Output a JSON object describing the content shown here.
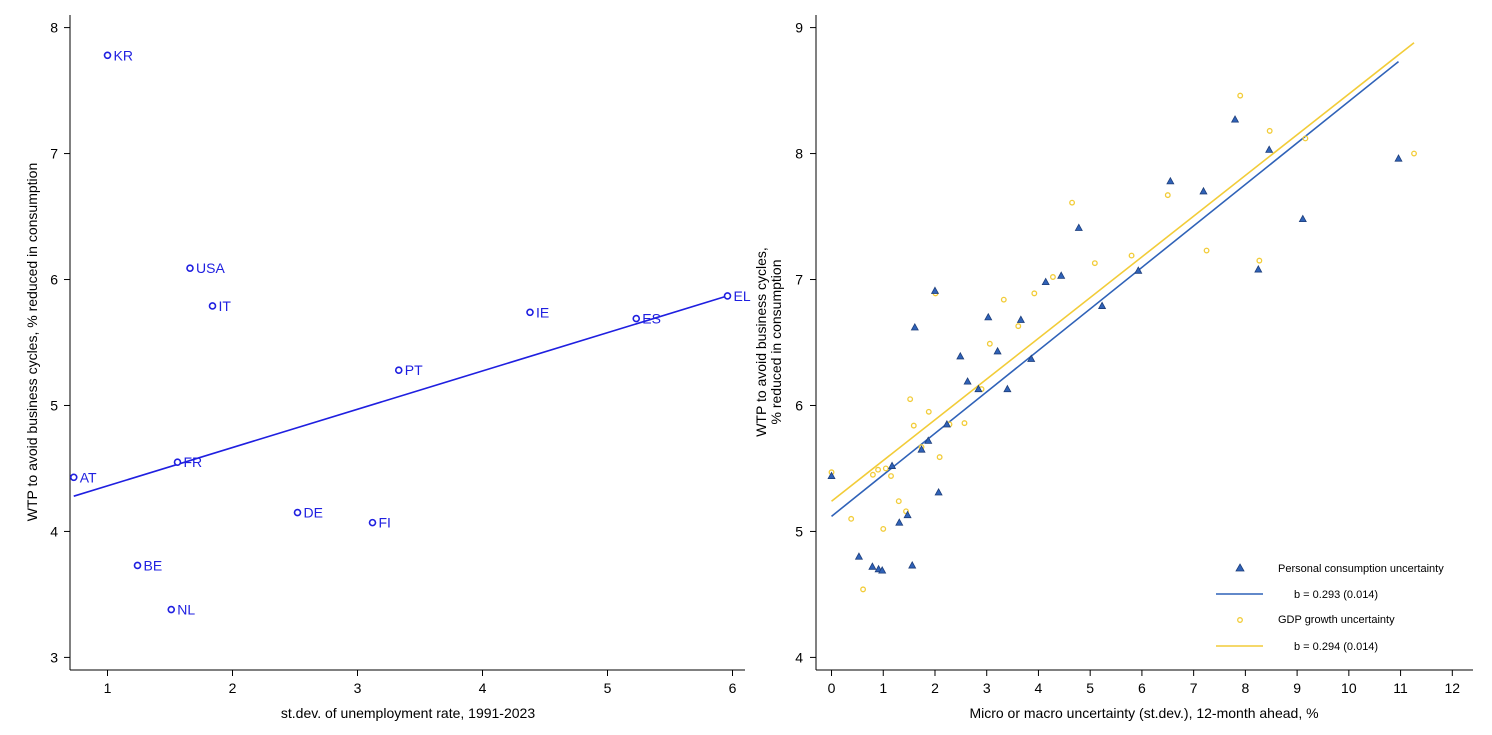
{
  "chart_data": [
    {
      "type": "scatter",
      "title": "",
      "xlabel": "st.dev. of unemployment rate, 1991-2023",
      "ylabel": "WTP to avoid business cycles, % reduced in consumption",
      "xlim": [
        0.7,
        6.1
      ],
      "ylim": [
        2.9,
        8.1
      ],
      "xticks": [
        1,
        2,
        3,
        4,
        5,
        6
      ],
      "yticks": [
        3,
        4,
        5,
        6,
        7,
        8
      ],
      "grid": false,
      "point_color": "#1f1fe0",
      "series": [
        {
          "points": [
            {
              "label": "KR",
              "x": 1.0,
              "y": 7.78
            },
            {
              "label": "USA",
              "x": 1.66,
              "y": 6.09
            },
            {
              "label": "IT",
              "x": 1.84,
              "y": 5.79
            },
            {
              "label": "IE",
              "x": 4.38,
              "y": 5.74
            },
            {
              "label": "ES",
              "x": 5.23,
              "y": 5.69
            },
            {
              "label": "EL",
              "x": 5.96,
              "y": 5.87
            },
            {
              "label": "PT",
              "x": 3.33,
              "y": 5.28
            },
            {
              "label": "FR",
              "x": 1.56,
              "y": 4.55
            },
            {
              "label": "AT",
              "x": 0.73,
              "y": 4.43
            },
            {
              "label": "DE",
              "x": 2.52,
              "y": 4.15
            },
            {
              "label": "FI",
              "x": 3.12,
              "y": 4.07
            },
            {
              "label": "BE",
              "x": 1.24,
              "y": 3.73
            },
            {
              "label": "NL",
              "x": 1.51,
              "y": 3.38
            }
          ]
        }
      ],
      "fit_line": {
        "x": [
          0.73,
          5.96
        ],
        "y": [
          4.28,
          5.87
        ]
      }
    },
    {
      "type": "scatter",
      "title": "",
      "xlabel": "Micro or macro uncertainty (st.dev.), 12-month ahead, %",
      "ylabel": [
        "WTP to avoid business cycles,",
        "% reduced in consumption"
      ],
      "xlim": [
        -0.3,
        12.4
      ],
      "ylim": [
        3.9,
        9.1
      ],
      "xticks": [
        0,
        1,
        2,
        3,
        4,
        5,
        6,
        7,
        8,
        9,
        10,
        11,
        12
      ],
      "yticks": [
        4,
        5,
        6,
        7,
        8,
        9
      ],
      "grid": false,
      "legend_position": "bottom-right",
      "series": [
        {
          "name": "Personal consumption uncertainty",
          "fit_label": "b = 0.293 (0.014)",
          "marker": "triangle",
          "color": "#2f62b8",
          "points": [
            [
              0.0,
              5.44
            ],
            [
              0.53,
              4.8
            ],
            [
              0.79,
              4.72
            ],
            [
              0.91,
              4.7
            ],
            [
              0.98,
              4.69
            ],
            [
              1.17,
              5.52
            ],
            [
              1.31,
              5.07
            ],
            [
              1.47,
              5.13
            ],
            [
              1.56,
              4.73
            ],
            [
              1.61,
              6.62
            ],
            [
              1.74,
              5.65
            ],
            [
              1.87,
              5.72
            ],
            [
              2.0,
              6.91
            ],
            [
              2.07,
              5.31
            ],
            [
              2.23,
              5.85
            ],
            [
              2.49,
              6.39
            ],
            [
              2.63,
              6.19
            ],
            [
              2.84,
              6.13
            ],
            [
              3.03,
              6.7
            ],
            [
              3.21,
              6.43
            ],
            [
              3.4,
              6.13
            ],
            [
              3.66,
              6.68
            ],
            [
              3.86,
              6.37
            ],
            [
              4.14,
              6.98
            ],
            [
              4.44,
              7.03
            ],
            [
              4.78,
              7.41
            ],
            [
              5.23,
              6.79
            ],
            [
              5.93,
              7.07
            ],
            [
              6.55,
              7.78
            ],
            [
              7.19,
              7.7
            ],
            [
              7.8,
              8.27
            ],
            [
              8.25,
              7.08
            ],
            [
              8.46,
              8.03
            ],
            [
              9.11,
              7.48
            ],
            [
              10.96,
              7.96
            ]
          ],
          "fit_line": {
            "x": [
              0.0,
              10.96
            ],
            "y": [
              5.12,
              8.73
            ]
          }
        },
        {
          "name": "GDP growth uncertainty",
          "fit_label": "b = 0.294 (0.014)",
          "marker": "circle",
          "color": "#f2cc38",
          "points": [
            [
              0.0,
              5.47
            ],
            [
              0.38,
              5.1
            ],
            [
              0.61,
              4.54
            ],
            [
              0.8,
              5.45
            ],
            [
              0.9,
              5.49
            ],
            [
              1.0,
              5.02
            ],
            [
              1.05,
              5.5
            ],
            [
              1.15,
              5.44
            ],
            [
              1.3,
              5.24
            ],
            [
              1.44,
              5.16
            ],
            [
              1.52,
              6.05
            ],
            [
              1.59,
              5.84
            ],
            [
              1.74,
              5.67
            ],
            [
              1.88,
              5.95
            ],
            [
              2.01,
              6.89
            ],
            [
              2.09,
              5.59
            ],
            [
              2.28,
              5.85
            ],
            [
              2.57,
              5.86
            ],
            [
              2.9,
              6.13
            ],
            [
              3.06,
              6.49
            ],
            [
              3.33,
              6.84
            ],
            [
              3.61,
              6.63
            ],
            [
              3.92,
              6.89
            ],
            [
              4.28,
              7.02
            ],
            [
              4.65,
              7.61
            ],
            [
              5.09,
              7.13
            ],
            [
              5.8,
              7.19
            ],
            [
              6.5,
              7.67
            ],
            [
              7.25,
              7.23
            ],
            [
              7.9,
              8.46
            ],
            [
              8.27,
              7.15
            ],
            [
              8.47,
              8.18
            ],
            [
              9.16,
              8.12
            ],
            [
              11.26,
              8.0
            ]
          ],
          "fit_line": {
            "x": [
              0.0,
              11.26
            ],
            "y": [
              5.24,
              8.88
            ]
          }
        }
      ]
    }
  ]
}
